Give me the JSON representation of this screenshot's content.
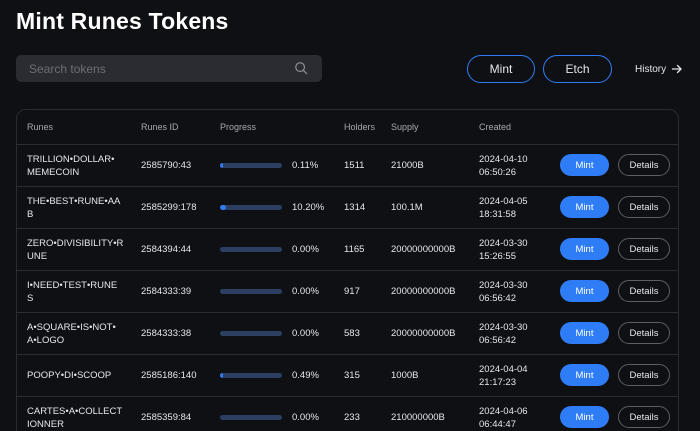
{
  "page": {
    "title": "Mint Runes Tokens"
  },
  "search": {
    "placeholder": "Search tokens",
    "value": "",
    "icon": "search-icon"
  },
  "actions": {
    "mint_label": "Mint",
    "etch_label": "Etch",
    "history_label": "History",
    "history_icon": "arrow-right-icon"
  },
  "colors": {
    "accent": "#2f7df6",
    "bar_track": "#2c3f63",
    "background": "#0f1013"
  },
  "table": {
    "columns": [
      "Runes",
      "Runes ID",
      "Progress",
      "Holders",
      "Supply",
      "Created"
    ],
    "mint_label": "Mint",
    "details_label": "Details",
    "rows": [
      {
        "name": [
          "TRILLION•DOLLAR•",
          "MEMECOIN"
        ],
        "id": "2585790:43",
        "progress": 0.11,
        "progress_text": "0.11%",
        "holders": "1511",
        "supply": "21000B",
        "created": [
          "2024-04-10",
          "06:50:26"
        ]
      },
      {
        "name": [
          "THE•BEST•RUNE•AA",
          "B"
        ],
        "id": "2585299:178",
        "progress": 10.2,
        "progress_text": "10.20%",
        "holders": "1314",
        "supply": "100.1M",
        "created": [
          "2024-04-05",
          "18:31:58"
        ]
      },
      {
        "name": [
          "ZERO•DIVISIBILITY•R",
          "UNE"
        ],
        "id": "2584394:44",
        "progress": 0,
        "progress_text": "0.00%",
        "holders": "1165",
        "supply": "20000000000B",
        "created": [
          "2024-03-30",
          "15:26:55"
        ]
      },
      {
        "name": [
          "I•NEED•TEST•RUNE",
          "S"
        ],
        "id": "2584333:39",
        "progress": 0,
        "progress_text": "0.00%",
        "holders": "917",
        "supply": "20000000000B",
        "created": [
          "2024-03-30",
          "06:56:42"
        ]
      },
      {
        "name": [
          "A•SQUARE•IS•NOT•",
          "A•LOGO"
        ],
        "id": "2584333:38",
        "progress": 0,
        "progress_text": "0.00%",
        "holders": "583",
        "supply": "20000000000B",
        "created": [
          "2024-03-30",
          "06:56:42"
        ]
      },
      {
        "name": [
          "POOPY•DI•SCOOP"
        ],
        "id": "2585186:140",
        "progress": 0.49,
        "progress_text": "0.49%",
        "holders": "315",
        "supply": "1000B",
        "created": [
          "2024-04-04",
          "21:17:23"
        ]
      },
      {
        "name": [
          "CARTES•A•COLLECT",
          "IONNER"
        ],
        "id": "2585359:84",
        "progress": 0,
        "progress_text": "0.00%",
        "holders": "233",
        "supply": "210000000B",
        "created": [
          "2024-04-06",
          "06:44:47"
        ]
      }
    ]
  }
}
